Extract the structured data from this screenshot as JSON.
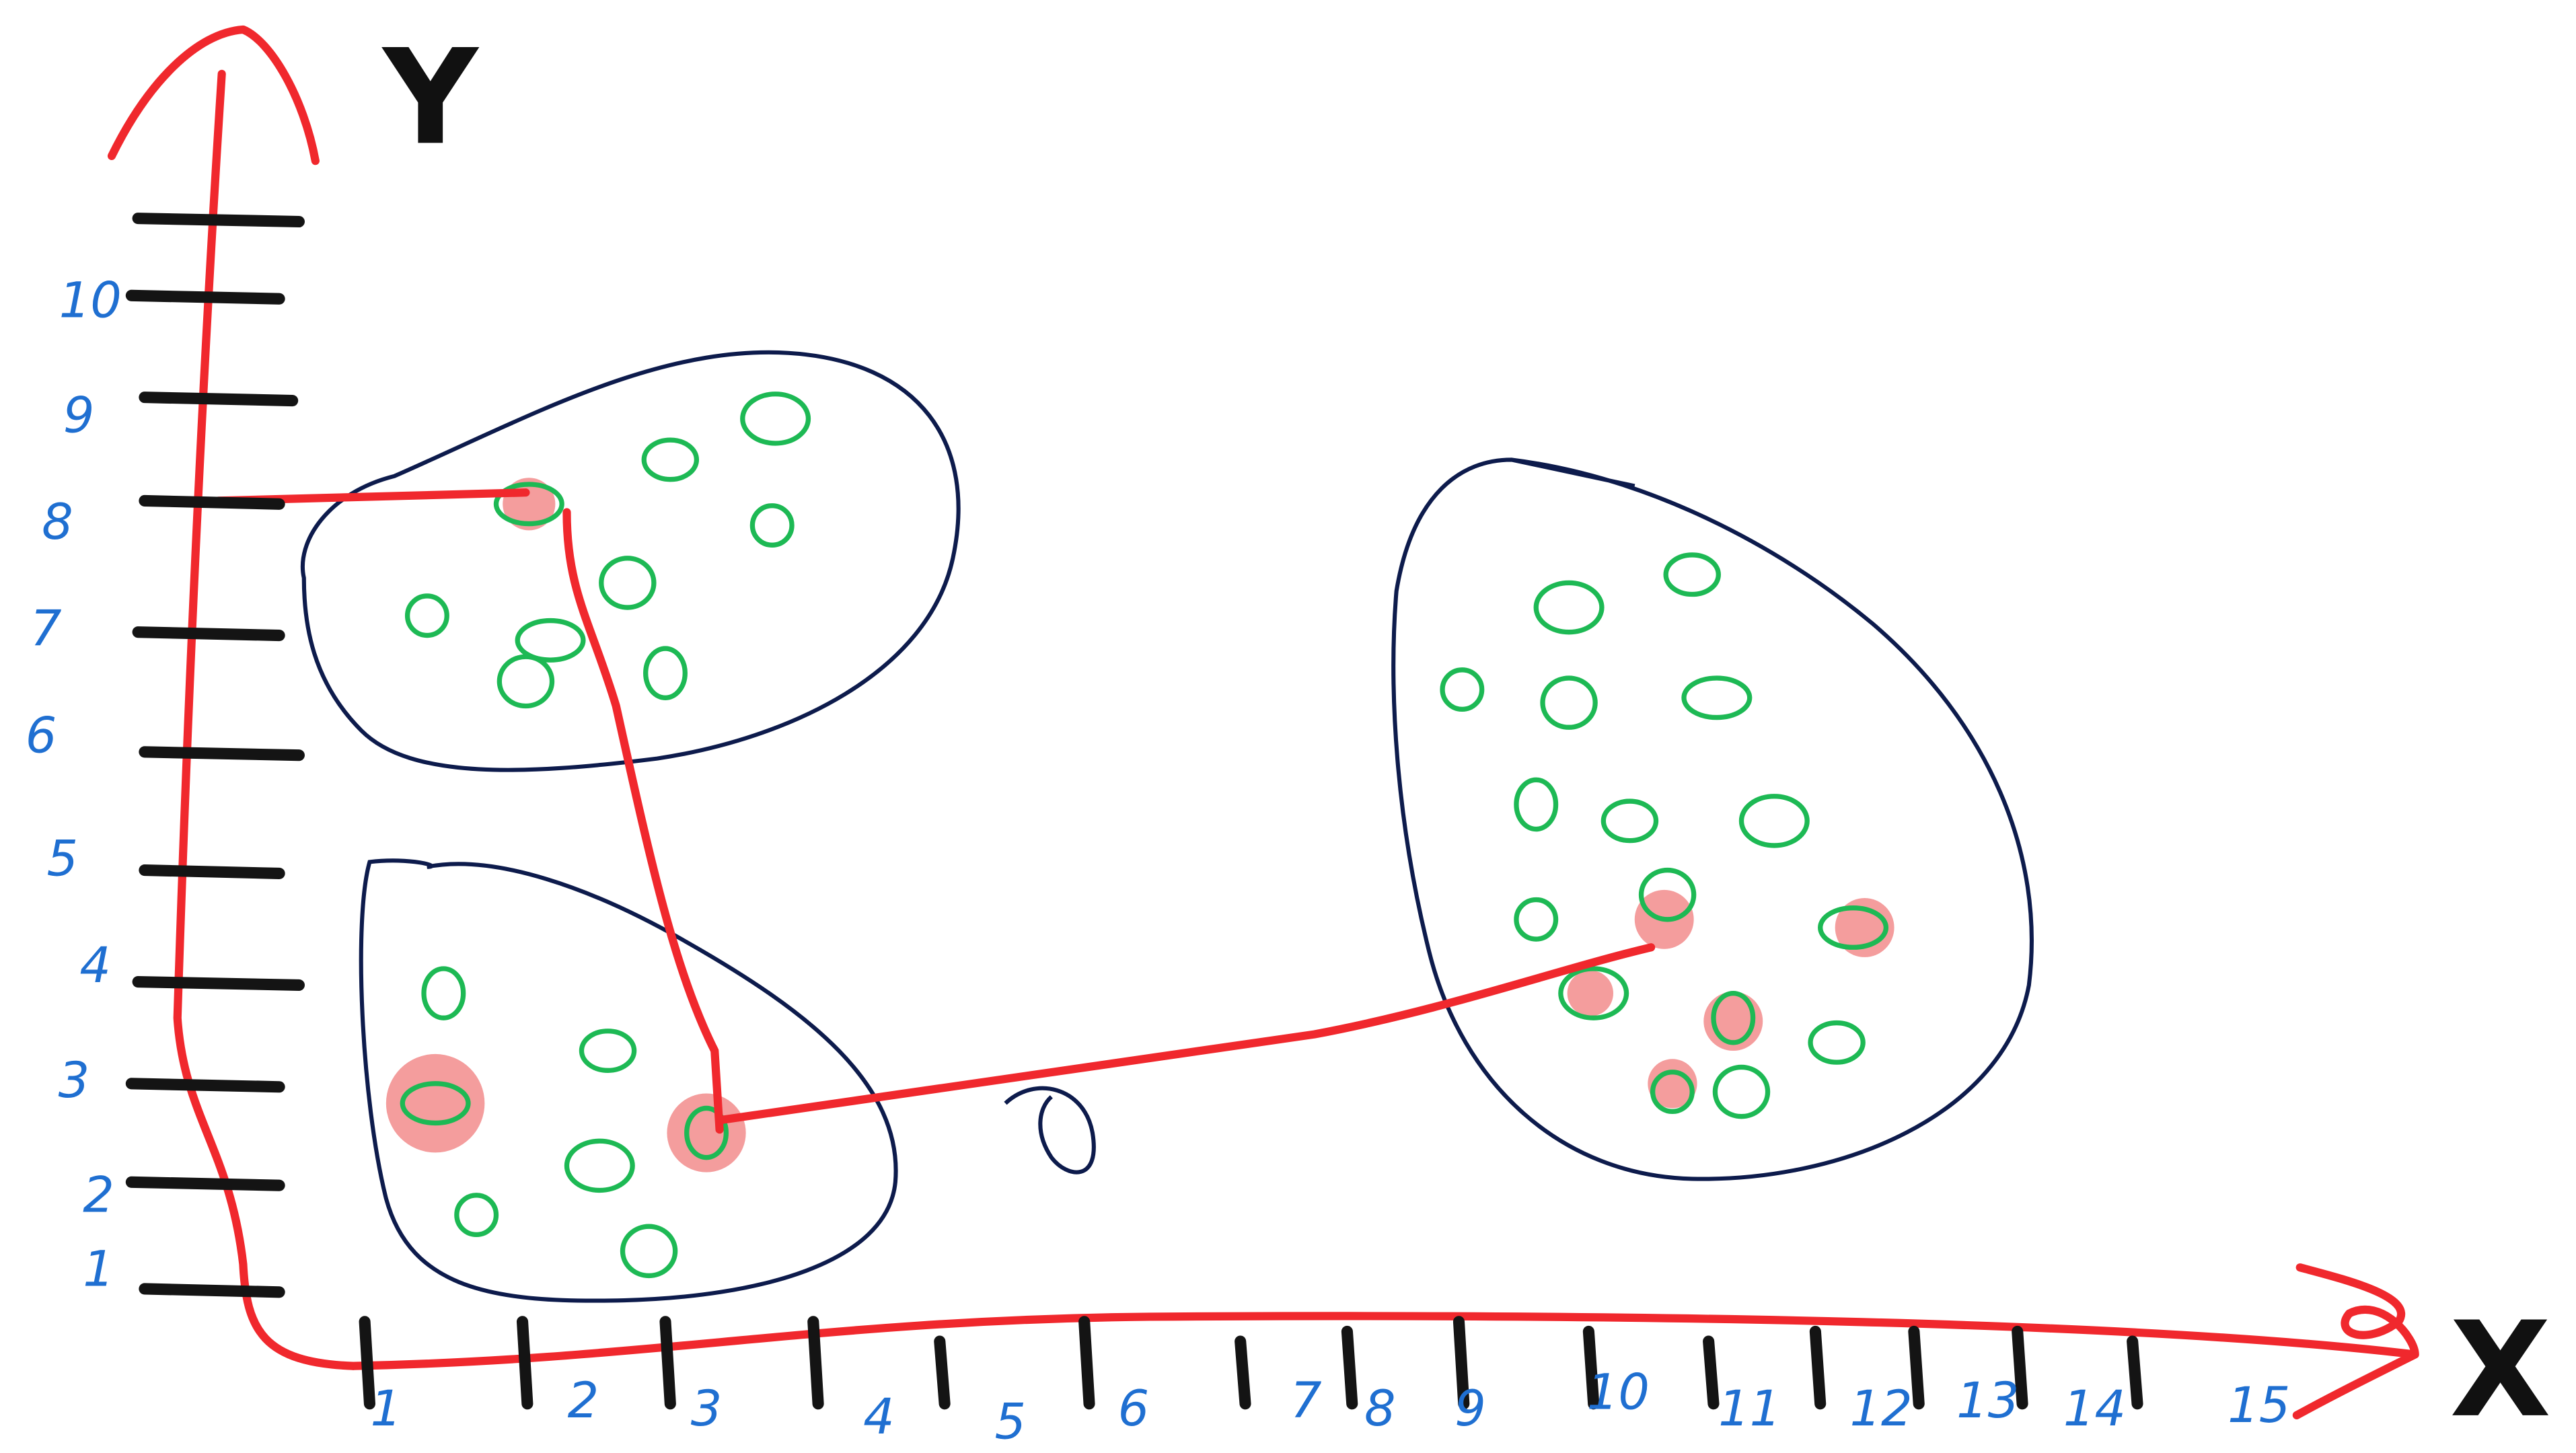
{
  "axes": {
    "x_label": "X",
    "y_label": "Y",
    "x_ticks": [
      "1",
      "2",
      "3",
      "4",
      "5",
      "6",
      "7",
      "8",
      "9",
      "10",
      "11",
      "12",
      "13",
      "14",
      "15"
    ],
    "y_ticks": [
      "1",
      "2",
      "3",
      "4",
      "5",
      "6",
      "7",
      "8",
      "9",
      "10"
    ]
  }
}
